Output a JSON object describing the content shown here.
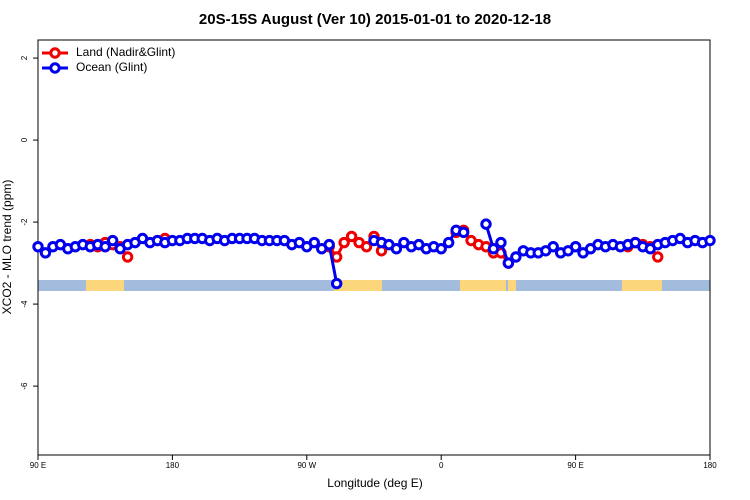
{
  "chart_data": {
    "type": "line",
    "title": "20S-15S August (Ver 10)   2015-01-01 to 2020-12-18",
    "xlabel": "Longitude (deg E)",
    "ylabel": "XCO2 - MLO trend (ppm)",
    "xlim": [
      90,
      540
    ],
    "xticks": [
      {
        "value": 90,
        "label": "90 E"
      },
      180,
      {
        "value": 270,
        "label": "90 W"
      },
      {
        "value": 360,
        "label": "0"
      },
      {
        "value": 450,
        "label": "90 E"
      },
      {
        "value": 540,
        "label": "180"
      }
    ],
    "ylim": [
      -7.68,
      2.44
    ],
    "yticks": [
      2,
      0,
      -2,
      -4,
      -6
    ],
    "legend": "top-left",
    "series": [
      {
        "name": "Land (Nadir&Glint)",
        "color": "#ee0000",
        "x": [
          125,
          130,
          135,
          140,
          145,
          150,
          160,
          170,
          175,
          280,
          285,
          290,
          295,
          300,
          305,
          310,
          315,
          320,
          365,
          370,
          375,
          380,
          385,
          390,
          395,
          400,
          405,
          480,
          485,
          490,
          495,
          500,
          505
        ],
        "values": [
          -2.55,
          -2.6,
          -2.5,
          -2.55,
          -2.6,
          -2.85,
          null,
          -2.45,
          -2.4,
          null,
          -2.6,
          -2.85,
          -2.5,
          -2.35,
          -2.5,
          -2.6,
          -2.35,
          -2.7,
          null,
          -2.25,
          -2.2,
          -2.45,
          -2.55,
          -2.6,
          -2.75,
          -2.75,
          -3.0,
          null,
          -2.6,
          -2.5,
          -2.55,
          -2.6,
          -2.85
        ]
      },
      {
        "name": "Ocean (Glint)",
        "color": "#0000ee",
        "x": [
          90,
          95,
          100,
          105,
          110,
          115,
          120,
          125,
          130,
          135,
          140,
          145,
          150,
          155,
          160,
          165,
          170,
          175,
          180,
          185,
          190,
          195,
          200,
          205,
          210,
          215,
          220,
          225,
          230,
          235,
          240,
          245,
          250,
          255,
          260,
          265,
          270,
          275,
          280,
          285,
          290,
          295,
          300,
          305,
          310,
          315,
          320,
          325,
          330,
          335,
          340,
          345,
          350,
          355,
          360,
          365,
          370,
          375,
          380,
          385,
          390,
          395,
          400,
          405,
          410,
          415,
          420,
          425,
          430,
          435,
          440,
          445,
          450,
          455,
          460,
          465,
          470,
          475,
          480,
          485,
          490,
          495,
          500,
          505,
          510,
          515,
          520,
          525,
          530,
          535,
          540
        ],
        "values": [
          -2.6,
          -2.75,
          -2.6,
          -2.55,
          -2.65,
          -2.6,
          -2.55,
          -2.6,
          -2.55,
          -2.6,
          -2.45,
          -2.65,
          -2.55,
          -2.5,
          -2.4,
          -2.5,
          -2.45,
          -2.5,
          -2.45,
          -2.45,
          -2.4,
          -2.4,
          -2.4,
          -2.45,
          -2.4,
          -2.45,
          -2.4,
          -2.4,
          -2.4,
          -2.4,
          -2.45,
          -2.45,
          -2.45,
          -2.45,
          -2.55,
          -2.5,
          -2.6,
          -2.5,
          -2.65,
          -2.55,
          -3.5,
          null,
          null,
          null,
          null,
          -2.45,
          -2.5,
          -2.55,
          -2.65,
          -2.5,
          -2.6,
          -2.55,
          -2.65,
          -2.6,
          -2.65,
          -2.5,
          -2.2,
          -2.25,
          null,
          null,
          -2.05,
          -2.65,
          -2.5,
          -3.0,
          -2.85,
          -2.7,
          -2.75,
          -2.75,
          -2.7,
          -2.6,
          -2.75,
          -2.7,
          -2.6,
          -2.75,
          -2.65,
          -2.55,
          -2.6,
          -2.55,
          -2.6,
          -2.55,
          -2.5,
          -2.6,
          -2.65,
          -2.55,
          -2.5,
          -2.45,
          -2.4,
          -2.5,
          -2.45,
          -2.5,
          -2.45
        ]
      }
    ]
  }
}
